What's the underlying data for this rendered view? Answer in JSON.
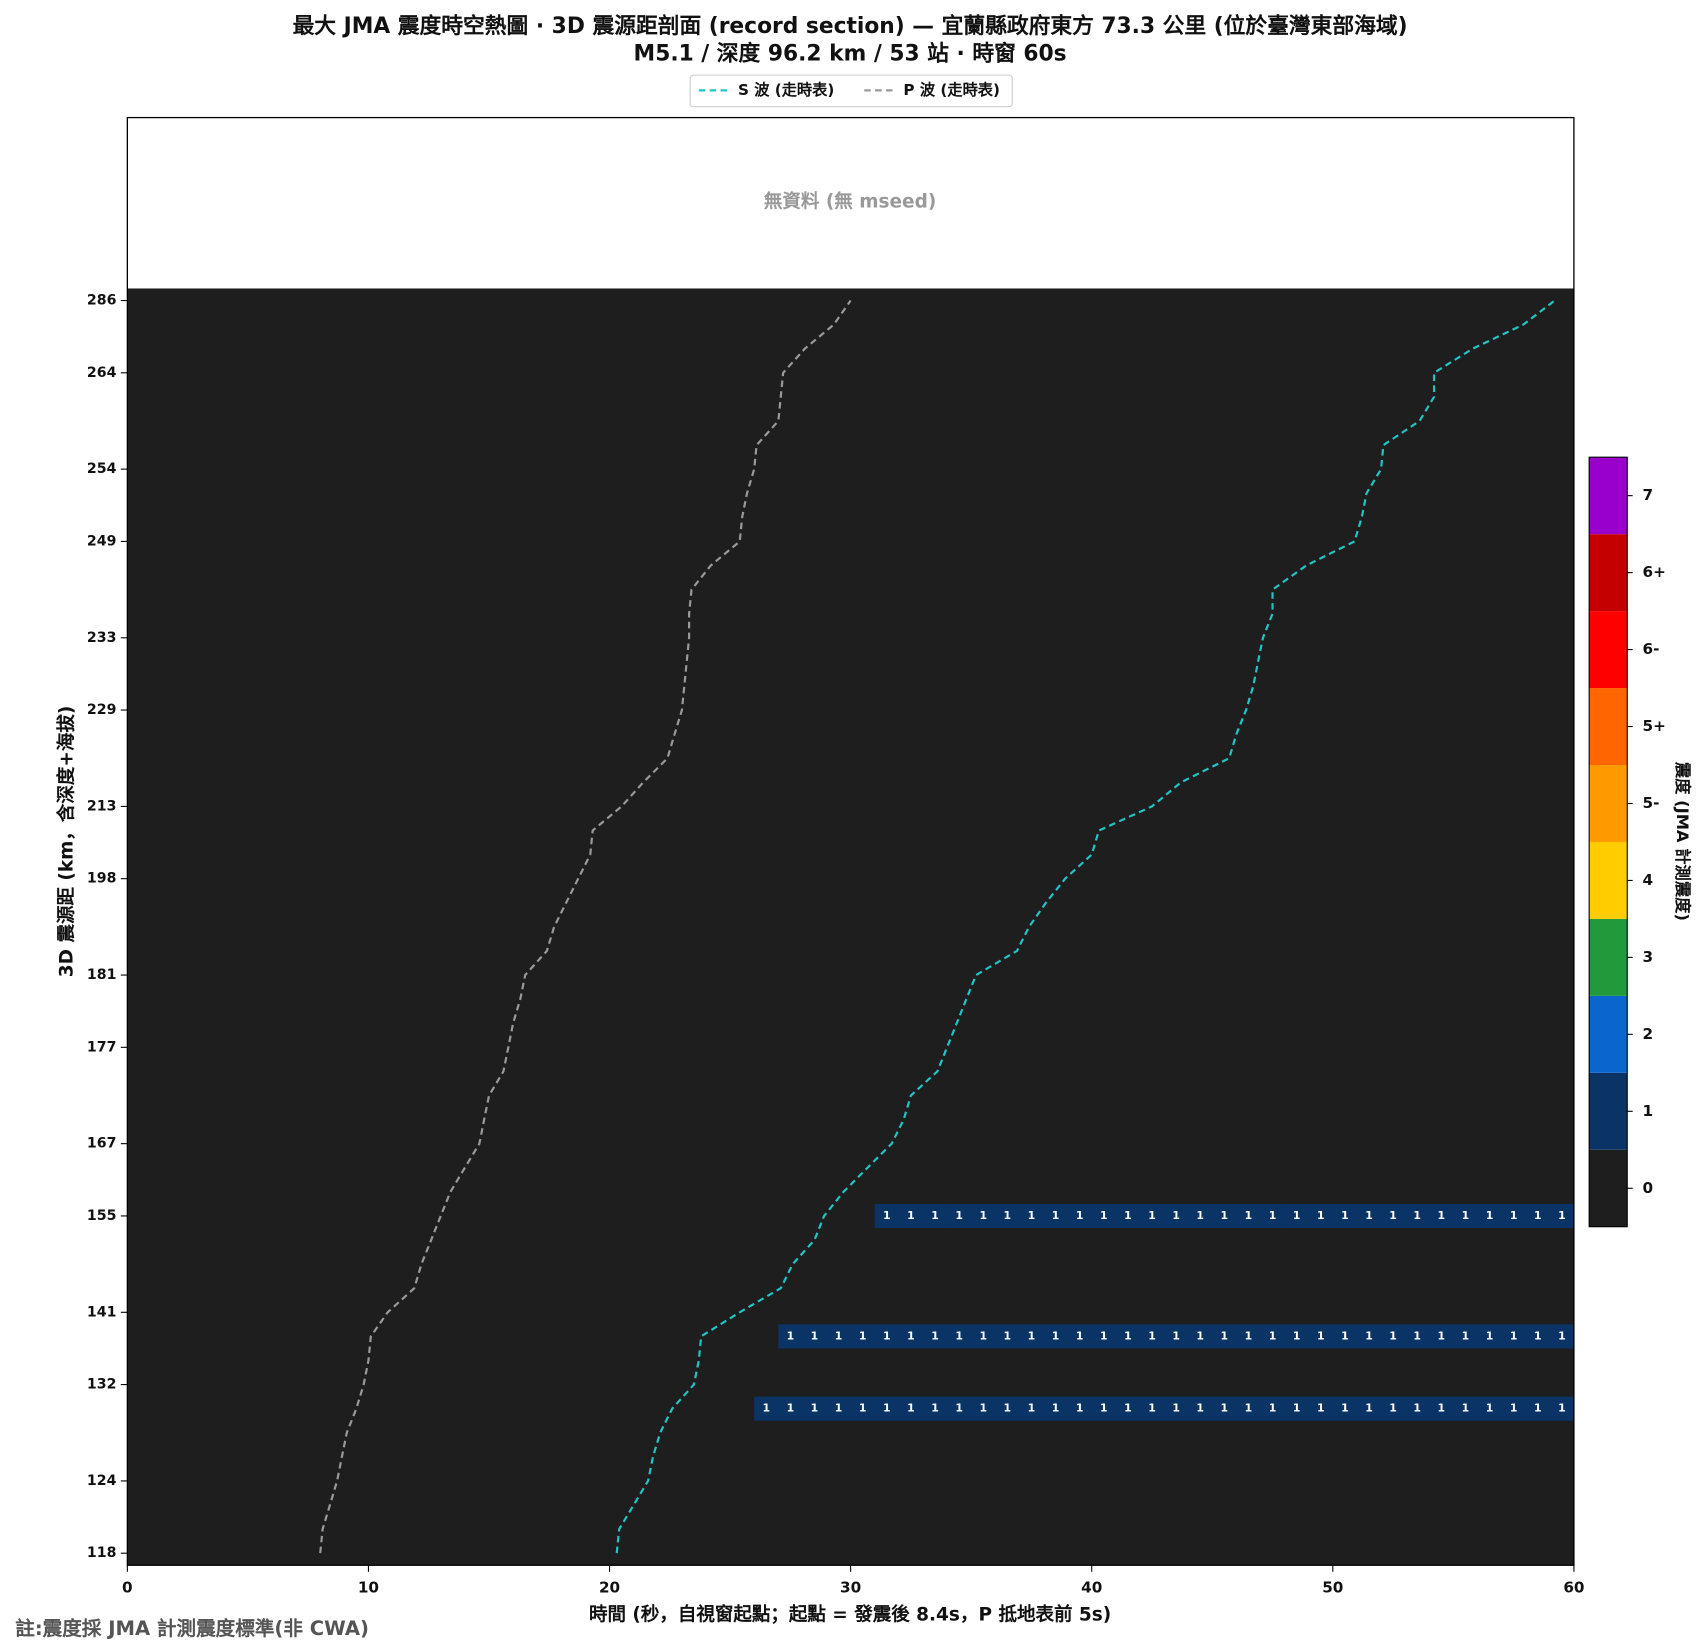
{
  "chart_data": {
    "type": "record_section",
    "title": "最大 JMA 震度時空熱圖 · 3D 震源距剖面 (record section) — 宜蘭縣政府東方  73.3  公里 (位於臺灣東部海域)",
    "subtitle": "M5.1 / 深度 96.2 km / 53 站 · 時窗 60s",
    "no_data_text": "無資料 (無 mseed)",
    "x_label": "時間 (秒，自視窗起點；起點 = 發震後 8.4s，P 抵地表前 5s)",
    "y_label": "3D 震源距 (km，含深度+海拔)",
    "footnote": "註:震度採 JMA 計測震度標準(非 CWA)",
    "xlim": [
      0,
      60
    ],
    "xticks": [
      0,
      10,
      20,
      30,
      40,
      50,
      60
    ],
    "categories": [
      "118",
      null,
      null,
      "124",
      null,
      null,
      null,
      "132",
      null,
      null,
      "141",
      null,
      null,
      null,
      "155",
      null,
      null,
      "167",
      null,
      null,
      null,
      "177",
      null,
      null,
      "181",
      null,
      null,
      null,
      "198",
      null,
      null,
      "213",
      null,
      null,
      null,
      "229",
      null,
      null,
      "233",
      null,
      null,
      null,
      "249",
      null,
      null,
      "254",
      null,
      null,
      null,
      "264",
      null,
      null,
      "286"
    ],
    "series": [
      {
        "name": "S 波 (走時表)",
        "color": "#22c5c5",
        "values": [
          20.3,
          20.4,
          21.0,
          21.6,
          21.8,
          22.1,
          22.6,
          23.5,
          23.7,
          23.8,
          25.4,
          27.1,
          27.6,
          28.5,
          28.9,
          29.7,
          30.7,
          31.7,
          32.2,
          32.5,
          33.6,
          34.0,
          34.4,
          34.8,
          35.2,
          36.9,
          37.4,
          38.1,
          38.9,
          40.0,
          40.3,
          42.5,
          43.7,
          45.7,
          46.0,
          46.4,
          46.7,
          46.9,
          47.1,
          47.5,
          47.5,
          48.9,
          50.9,
          51.2,
          51.4,
          52.0,
          52.1,
          53.6,
          54.2,
          54.2,
          55.8,
          57.9,
          59.2
        ]
      },
      {
        "name": "P 波 (走時表)",
        "color": "#9a9a9a",
        "values": [
          8.0,
          8.1,
          8.4,
          8.7,
          8.9,
          9.1,
          9.5,
          9.8,
          10.0,
          10.1,
          10.8,
          11.9,
          12.2,
          12.6,
          13.0,
          13.4,
          14.0,
          14.6,
          14.8,
          15.0,
          15.6,
          15.8,
          16.0,
          16.3,
          16.5,
          17.4,
          17.7,
          18.2,
          18.7,
          19.2,
          19.3,
          20.5,
          21.4,
          22.4,
          22.7,
          23.0,
          23.1,
          23.2,
          23.3,
          23.3,
          23.4,
          24.2,
          25.4,
          25.5,
          25.7,
          26.0,
          26.1,
          27.0,
          27.1,
          27.2,
          28.1,
          29.3,
          30.0
        ]
      }
    ],
    "intensity": [
      null,
      null,
      null,
      null,
      null,
      null,
      [
        null,
        null,
        null,
        null,
        null,
        null,
        null,
        null,
        null,
        null,
        null,
        null,
        null,
        null,
        null,
        null,
        null,
        null,
        null,
        null,
        null,
        null,
        null,
        null,
        null,
        null,
        1,
        1,
        1,
        1,
        1,
        1,
        1,
        1,
        1,
        1,
        1,
        1,
        1,
        1,
        1,
        1,
        1,
        1,
        1,
        1,
        1,
        1,
        1,
        1,
        1,
        1,
        1,
        1,
        1,
        1,
        1,
        1,
        1,
        1
      ],
      null,
      null,
      [
        null,
        null,
        null,
        null,
        null,
        null,
        null,
        null,
        null,
        null,
        null,
        null,
        null,
        null,
        null,
        null,
        null,
        null,
        null,
        null,
        null,
        null,
        null,
        null,
        null,
        null,
        null,
        1,
        1,
        1,
        1,
        1,
        1,
        1,
        1,
        1,
        1,
        1,
        1,
        1,
        1,
        1,
        1,
        1,
        1,
        1,
        1,
        1,
        1,
        1,
        1,
        1,
        1,
        1,
        1,
        1,
        1,
        1,
        1,
        1
      ],
      null,
      null,
      null,
      null,
      [
        null,
        null,
        null,
        null,
        null,
        null,
        null,
        null,
        null,
        null,
        null,
        null,
        null,
        null,
        null,
        null,
        null,
        null,
        null,
        null,
        null,
        null,
        null,
        null,
        null,
        null,
        null,
        null,
        null,
        null,
        null,
        1,
        1,
        1,
        1,
        1,
        1,
        1,
        1,
        1,
        1,
        1,
        1,
        1,
        1,
        1,
        1,
        1,
        1,
        1,
        1,
        1,
        1,
        1,
        1,
        1,
        1,
        1,
        1,
        1
      ],
      null,
      null,
      null,
      null,
      null,
      null,
      null,
      null,
      null,
      null,
      null,
      null,
      null,
      null,
      null,
      null,
      null,
      null,
      null,
      null,
      null,
      null,
      null,
      null,
      null,
      null,
      null,
      null,
      null,
      null,
      null,
      null,
      null,
      null,
      null,
      null,
      null,
      null
    ],
    "colorbar": {
      "label": "震度 (JMA 計測震度)",
      "levels": [
        "0",
        "1",
        "2",
        "3",
        "4",
        "5-",
        "5+",
        "6-",
        "6+",
        "7"
      ],
      "colors": [
        "#1e1e1e",
        "#0b3466",
        "#0a66cc",
        "#22993a",
        "#ffcc00",
        "#ff9900",
        "#ff6600",
        "#ff0000",
        "#c40000",
        "#9a00cc"
      ]
    }
  }
}
